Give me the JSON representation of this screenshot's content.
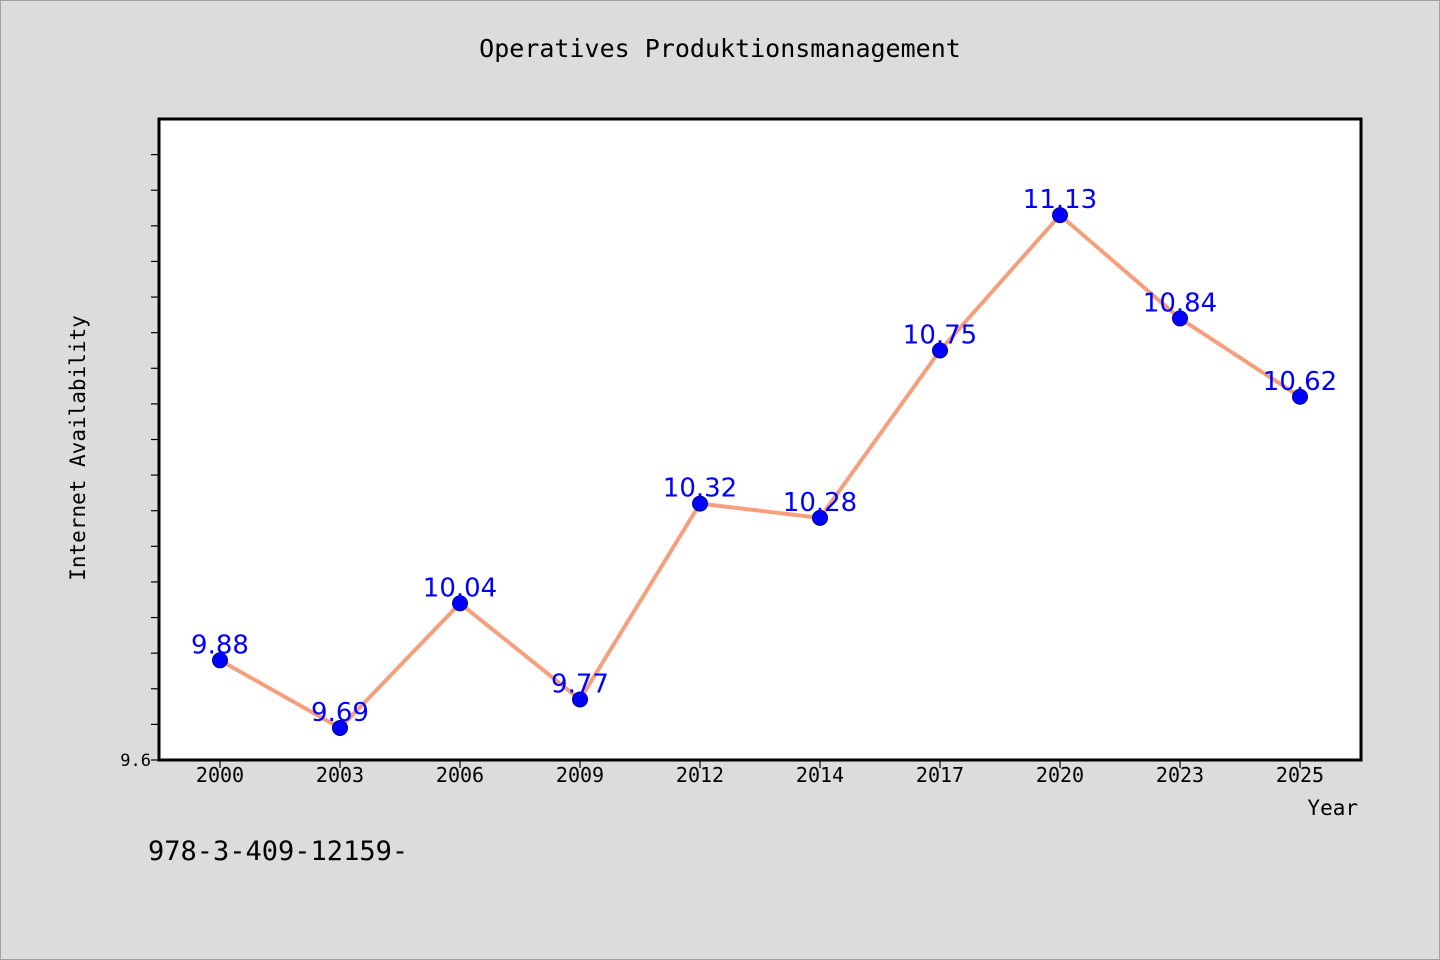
{
  "chart_data": {
    "type": "line",
    "title": "Operatives Produktionsmanagement",
    "xlabel": "Year",
    "ylabel": "Internet Availability",
    "categories": [
      "2000",
      "2003",
      "2006",
      "2009",
      "2012",
      "2014",
      "2017",
      "2020",
      "2023",
      "2025"
    ],
    "series": [
      {
        "values": [
          9.88,
          9.69,
          10.04,
          9.77,
          10.32,
          10.28,
          10.75,
          11.13,
          10.84,
          10.62
        ],
        "labels": [
          "9.88",
          "9.69",
          "10.04",
          "9.77",
          "10.32",
          "10.28",
          "10.75",
          "11.13",
          "10.84",
          "10.62"
        ],
        "line_color": "#f4a07e",
        "marker_color": "#0000ff"
      }
    ],
    "ylim": [
      9.6,
      11.4
    ],
    "y_minor_tick_step": 0.1,
    "y_tick_labels": [
      {
        "value": 9.6,
        "label": "9.6"
      }
    ],
    "grid": false,
    "legend": "none"
  },
  "footer": {
    "text": "978-3-409-12159-"
  }
}
